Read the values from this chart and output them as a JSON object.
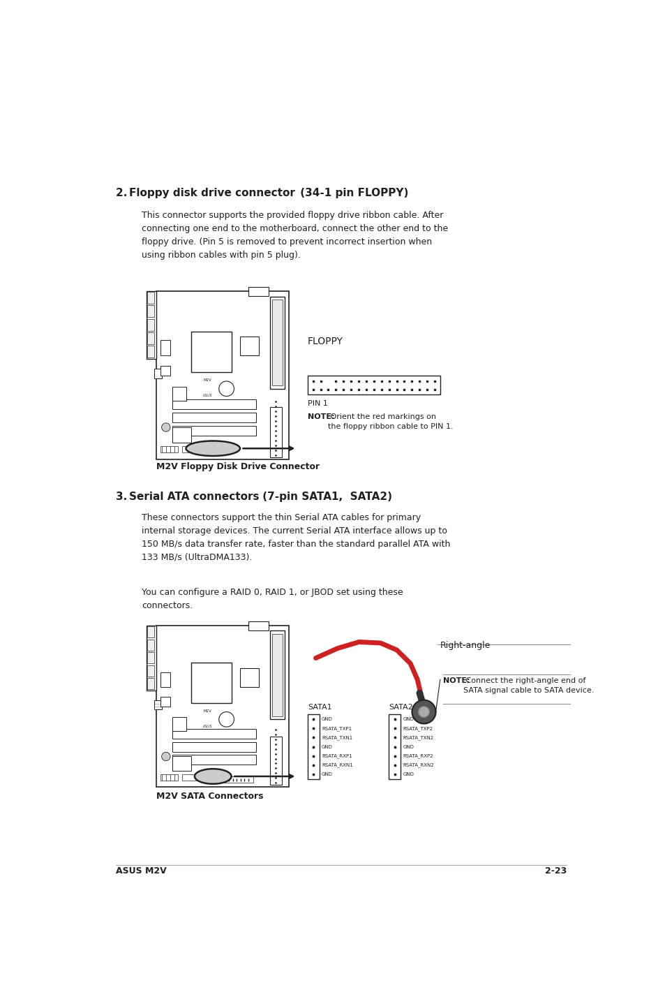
{
  "bg_color": "#ffffff",
  "text_color": "#231f20",
  "page_width": 9.54,
  "page_height": 14.38,
  "footer_text_left": "ASUS M2V",
  "footer_text_right": "2-23",
  "section2_heading_bold": "Floppy disk drive connector",
  "section2_heading_normal": " (34-1 pin FLOPPY)",
  "section2_heading_num": "2.",
  "section2_body": "This connector supports the provided floppy drive ribbon cable. After\nconnecting one end to the motherboard, connect the other end to the\nfloppy drive. (Pin 5 is removed to prevent incorrect insertion when\nusing ribbon cables with pin 5 plug).",
  "floppy_caption": "M2V Floppy Disk Drive Connector",
  "floppy_label": "FLOPPY",
  "floppy_pin1": "PIN 1",
  "floppy_note_bold": "NOTE:",
  "floppy_note": " Orient the red markings on\nthe floppy ribbon cable to PIN 1.",
  "section3_heading_num": "3.",
  "section3_heading_bold": "Serial ATA connectors",
  "section3_heading_normal": " (7-pin SATA1,  SATA2)",
  "section3_body1": "These connectors support the thin Serial ATA cables for primary\ninternal storage devices. The current Serial ATA interface allows up to\n150 MB/s data transfer rate, faster than the standard parallel ATA with\n133 MB/s (UltraDMA133).",
  "section3_body2": "You can configure a RAID 0, RAID 1, or JBOD set using these\nconnectors.",
  "sata_caption": "M2V SATA Connectors",
  "right_angle_label": "Right-angle",
  "sata_note_bold": "NOTE:",
  "sata_note": " Connect the right-angle end of\nSATA signal cable to SATA device.",
  "sata1_label": "SATA1",
  "sata2_label": "SATA2",
  "sata1_pins": [
    "GND",
    "RSATA_RXN1",
    "RSATA_RXP1",
    "GND",
    "RSATA_TXN1",
    "RSATA_TXP1",
    "GND"
  ],
  "sata2_pins": [
    "GND",
    "RSATA_RXN2",
    "RSATA_RXP2",
    "GND",
    "RSATA_TXN2",
    "RSATA_TXP2",
    "GND"
  ]
}
